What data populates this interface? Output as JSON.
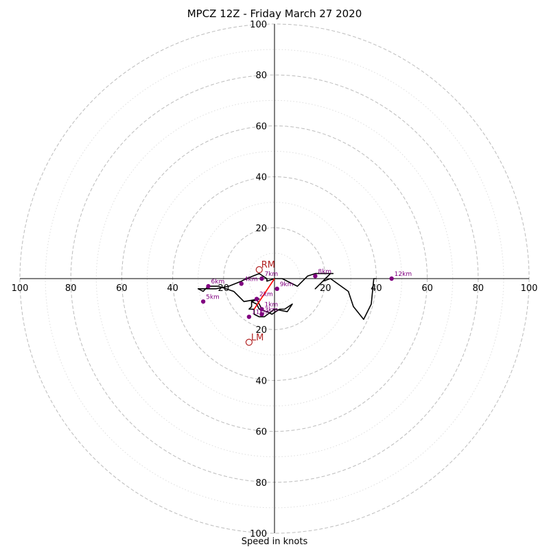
{
  "chart_data": {
    "type": "hodograph",
    "title": "MPCZ 12Z - Friday March 27 2020",
    "xlabel": "Speed in knots",
    "range": [
      -100,
      100
    ],
    "rings": [
      20,
      40,
      60,
      80,
      100
    ],
    "minor_rings": [
      10,
      30,
      50,
      70,
      90
    ],
    "axis_ticks": [
      {
        "v": -100,
        "label": "100"
      },
      {
        "v": -80,
        "label": "80"
      },
      {
        "v": -60,
        "label": "60"
      },
      {
        "v": -40,
        "label": "40"
      },
      {
        "v": -20,
        "label": "20"
      },
      {
        "v": 20,
        "label": "20"
      },
      {
        "v": 40,
        "label": "40"
      },
      {
        "v": 60,
        "label": "60"
      },
      {
        "v": 80,
        "label": "80"
      },
      {
        "v": 100,
        "label": "100"
      }
    ],
    "trace": [
      [
        -5,
        -12
      ],
      [
        -7,
        -8
      ],
      [
        -9,
        -9
      ],
      [
        -7,
        -10
      ],
      [
        -6,
        -12
      ],
      [
        -3,
        -13
      ],
      [
        -1,
        -14
      ],
      [
        2,
        -12
      ],
      [
        4,
        -12
      ],
      [
        7,
        -10
      ],
      [
        5,
        -13
      ],
      [
        0,
        -12
      ],
      [
        -4,
        -15
      ],
      [
        -6,
        -15
      ],
      [
        -8,
        -14
      ],
      [
        -8,
        -12
      ],
      [
        -10,
        -12
      ],
      [
        -9,
        -11
      ],
      [
        -9,
        -9
      ],
      [
        -6,
        -8
      ],
      [
        -12,
        -9
      ],
      [
        -16,
        -5
      ],
      [
        -22,
        -3
      ],
      [
        -26,
        -3
      ],
      [
        -28,
        -5
      ],
      [
        -30,
        -4
      ],
      [
        -27,
        -4
      ],
      [
        -23,
        -4
      ],
      [
        -18,
        -3
      ],
      [
        -13,
        -1
      ],
      [
        -11,
        0
      ],
      [
        -6,
        2
      ],
      [
        -3,
        0
      ],
      [
        -3,
        -1
      ],
      [
        0,
        0
      ],
      [
        3,
        0
      ],
      [
        9,
        -3
      ],
      [
        13,
        1
      ],
      [
        16,
        2
      ],
      [
        21,
        2
      ],
      [
        23,
        2
      ],
      [
        22,
        2
      ],
      [
        16,
        -4
      ],
      [
        17,
        -3
      ],
      [
        19,
        -1
      ],
      [
        22,
        0
      ],
      [
        29,
        -5
      ],
      [
        31,
        -11
      ],
      [
        35,
        -16
      ],
      [
        38,
        -10
      ],
      [
        39,
        0
      ],
      [
        40,
        0
      ]
    ],
    "heights": [
      {
        "label": "1km",
        "u": -5,
        "v": -12
      },
      {
        "label": "2km",
        "u": -7,
        "v": -8
      },
      {
        "label": "3km",
        "u": -5,
        "v": -14
      },
      {
        "label": "4km",
        "u": -13,
        "v": -2
      },
      {
        "label": "5km",
        "u": -28,
        "v": -9
      },
      {
        "label": "6km",
        "u": -26,
        "v": -3
      },
      {
        "label": "7km",
        "u": -5,
        "v": 0
      },
      {
        "label": "8km",
        "u": 16,
        "v": 1
      },
      {
        "label": "9km",
        "u": 1,
        "v": -4
      },
      {
        "label": "11km",
        "u": -10,
        "v": -15
      },
      {
        "label": "12km",
        "u": 46,
        "v": 0
      }
    ],
    "storm_motion_vector": {
      "from": [
        0,
        0
      ],
      "to": [
        -8,
        -12
      ]
    },
    "storm_motion": [
      {
        "label": "RM",
        "u": -6,
        "v": 3.5
      },
      {
        "label": "LM",
        "u": -10,
        "v": -25
      }
    ],
    "colors": {
      "trace": "#000000",
      "heights": "#800080",
      "storm": "#b22222",
      "grid": "#bbbbbb",
      "minor_grid": "#dddddd"
    }
  }
}
